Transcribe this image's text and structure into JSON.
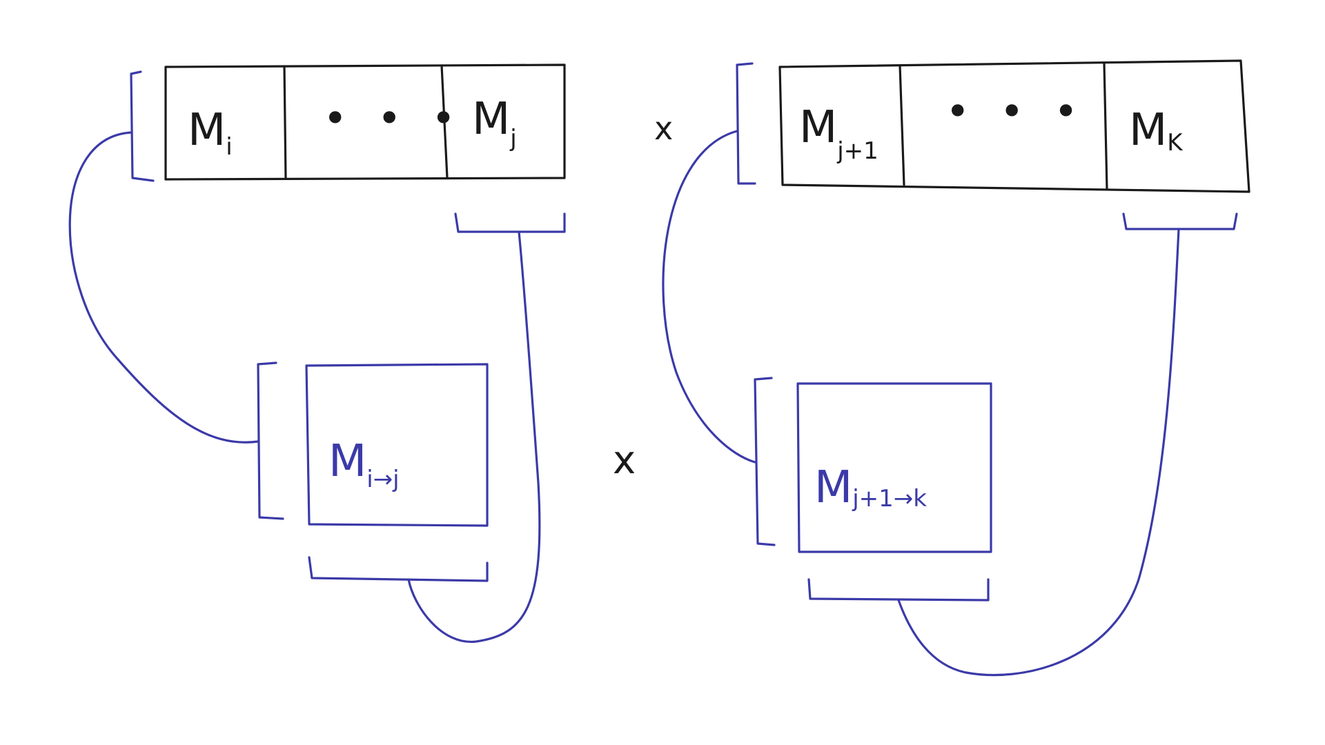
{
  "left_chain": {
    "first": {
      "base": "M",
      "sub": "i"
    },
    "middle": "• • •",
    "last": {
      "base": "M",
      "sub": "j"
    }
  },
  "right_chain": {
    "first": {
      "base": "M",
      "sub": "j+1"
    },
    "middle": "• • •",
    "last": {
      "base": "M",
      "sub": "K"
    }
  },
  "top_operator": "x",
  "left_result": {
    "base": "M",
    "sub": "i→j"
  },
  "right_result": {
    "base": "M",
    "sub": "j+1→k"
  },
  "bottom_operator": "x",
  "colors": {
    "chain_ink": "#1a1a1a",
    "link_ink": "#3b3aa8"
  }
}
